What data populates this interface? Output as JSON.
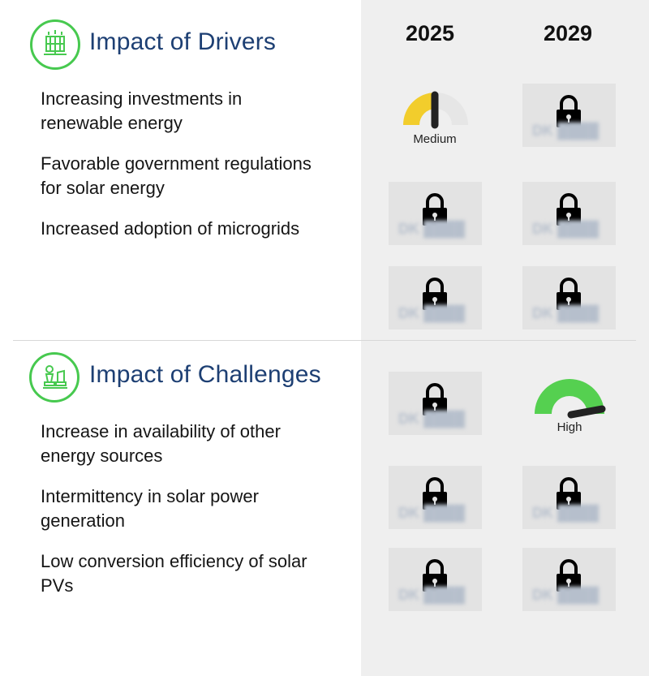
{
  "years": [
    "2025",
    "2029"
  ],
  "drivers": {
    "title": "Impact of Drivers",
    "icon": "solar-panel-icon",
    "items": [
      {
        "label": "Increasing investments in renewable energy",
        "impact_2025": "Medium",
        "impact_2029": "locked"
      },
      {
        "label": "Favorable government regulations for solar energy",
        "impact_2025": "locked",
        "impact_2029": "locked"
      },
      {
        "label": "Increased adoption of microgrids",
        "impact_2025": "locked",
        "impact_2029": "locked"
      }
    ]
  },
  "challenges": {
    "title": "Impact of Challenges",
    "icon": "chess-pieces-icon",
    "items": [
      {
        "label": "Increase in availability of other energy sources",
        "impact_2025": "locked",
        "impact_2029": "High"
      },
      {
        "label": "Intermittency in solar power generation",
        "impact_2025": "locked",
        "impact_2029": "locked"
      },
      {
        "label": "Low conversion efficiency of solar PVs",
        "impact_2025": "locked",
        "impact_2029": "locked"
      }
    ]
  },
  "gauges": {
    "medium": {
      "label": "Medium",
      "color": "#f2cd2c",
      "level": 0.5
    },
    "high": {
      "label": "High",
      "color": "#55d050",
      "level": 0.85
    }
  },
  "colors": {
    "title": "#1d3f73",
    "accent": "#47c94f",
    "panel": "#efefef",
    "tile": "#e3e3e3"
  }
}
